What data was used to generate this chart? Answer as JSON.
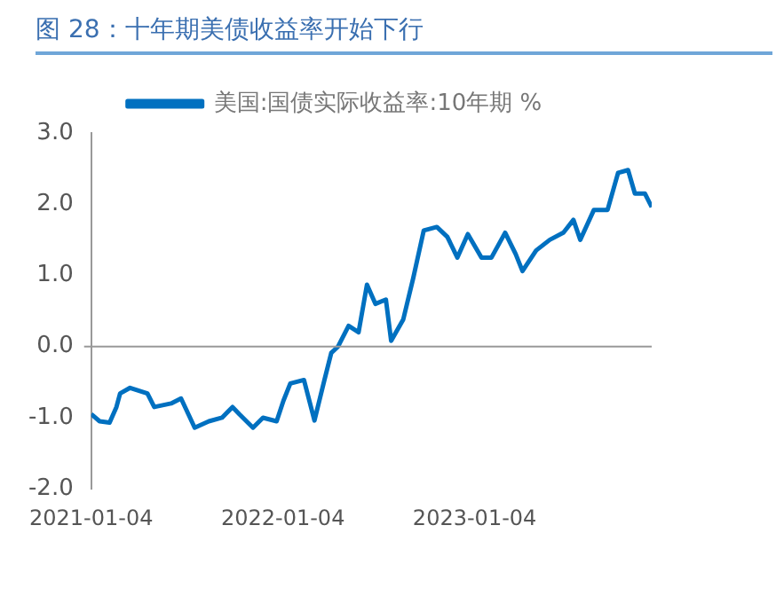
{
  "chart_data": {
    "type": "line",
    "title": "图 28：十年期美债收益率开始下行",
    "x": [
      "2021-01-04",
      "2021-01-20",
      "2021-02-08",
      "2021-02-21",
      "2021-02-28",
      "2021-03-19",
      "2021-04-21",
      "2021-05-04",
      "2021-06-05",
      "2021-06-24",
      "2021-07-20",
      "2021-08-16",
      "2021-09-10",
      "2021-09-30",
      "2021-10-13",
      "2021-11-08",
      "2021-11-27",
      "2021-12-23",
      "2022-01-05",
      "2022-01-18",
      "2022-02-13",
      "2022-03-05",
      "2022-03-24",
      "2022-04-06",
      "2022-04-19",
      "2022-05-09",
      "2022-05-28",
      "2022-06-13",
      "2022-06-29",
      "2022-07-19",
      "2022-07-29",
      "2022-08-21",
      "2022-09-09",
      "2022-09-29",
      "2022-10-24",
      "2022-11-13",
      "2022-12-02",
      "2022-12-22",
      "2023-01-17",
      "2023-02-05",
      "2023-03-03",
      "2023-03-23",
      "2023-04-05",
      "2023-05-01",
      "2023-05-27",
      "2023-06-22",
      "2023-07-11",
      "2023-07-24",
      "2023-08-19",
      "2023-09-14",
      "2023-10-04",
      "2023-10-23",
      "2023-11-05",
      "2023-11-24",
      "2023-12-07"
    ],
    "series": [
      {
        "name": "美国:国债实际收益率:10年期 %",
        "color": "#0070c0",
        "values": [
          -0.95,
          -1.05,
          -1.07,
          -0.85,
          -0.66,
          -0.58,
          -0.66,
          -0.85,
          -0.8,
          -0.73,
          -1.14,
          -1.05,
          -1.0,
          -0.85,
          -0.95,
          -1.14,
          -1.0,
          -1.05,
          -0.76,
          -0.52,
          -0.47,
          -1.04,
          -0.47,
          -0.09,
          0.0,
          0.29,
          0.2,
          0.87,
          0.6,
          0.66,
          0.08,
          0.38,
          0.96,
          1.63,
          1.68,
          1.54,
          1.25,
          1.58,
          1.25,
          1.25,
          1.6,
          1.3,
          1.06,
          1.35,
          1.5,
          1.6,
          1.78,
          1.5,
          1.92,
          1.92,
          2.44,
          2.48,
          2.15,
          2.15,
          1.96
        ]
      }
    ],
    "xlim": [
      "2021-01-04",
      "2023-12-07"
    ],
    "xticks": [
      {
        "value": "2021-01-04",
        "label": "2021-01-04"
      },
      {
        "value": "2022-01-04",
        "label": "2022-01-04"
      },
      {
        "value": "2023-01-04",
        "label": "2023-01-04"
      }
    ],
    "ylim": [
      -2,
      3
    ],
    "yticks": [
      {
        "value": -2,
        "label": "-2.0"
      },
      {
        "value": -1,
        "label": "-1.0"
      },
      {
        "value": 0,
        "label": "0.0"
      },
      {
        "value": 1,
        "label": "1.0"
      },
      {
        "value": 2,
        "label": "2.0"
      },
      {
        "value": 3,
        "label": "3.0"
      }
    ],
    "ref_lines": [
      {
        "axis": "y",
        "value": 0,
        "color": "#999999"
      }
    ],
    "legend": "top",
    "grid": false,
    "marker": "none",
    "line_style": "solid"
  }
}
